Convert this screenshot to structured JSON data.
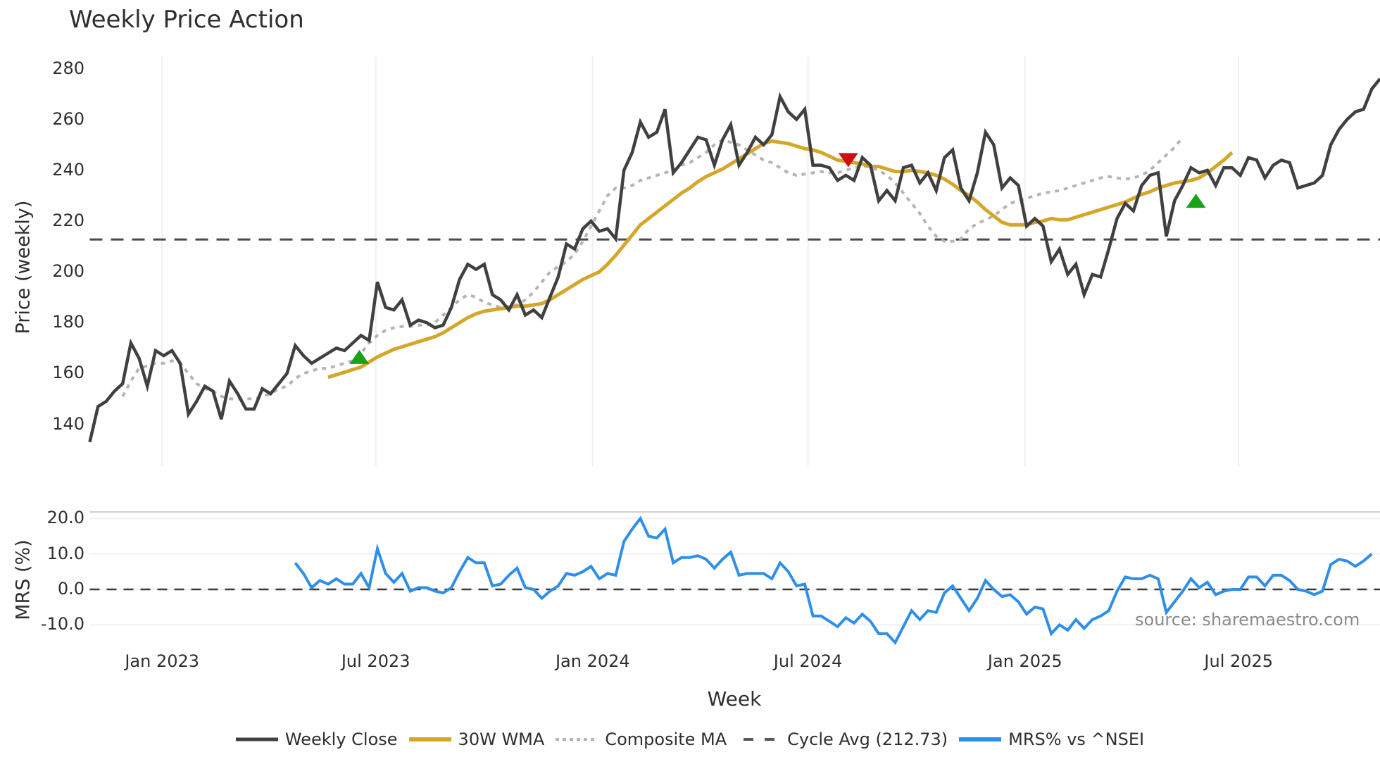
{
  "title": "Weekly Price Action",
  "price_axis": {
    "label": "Price (weekly)",
    "ticks": [
      {
        "v": 280,
        "label": "280"
      },
      {
        "v": 260,
        "label": "260"
      },
      {
        "v": 240,
        "label": "240"
      },
      {
        "v": 220,
        "label": "220"
      },
      {
        "v": 200,
        "label": "200"
      },
      {
        "v": 180,
        "label": "180"
      },
      {
        "v": 160,
        "label": "160"
      },
      {
        "v": 140,
        "label": "140"
      }
    ]
  },
  "mrs_axis": {
    "label": "MRS (%)",
    "ticks": [
      {
        "v": 20,
        "label": "20.0"
      },
      {
        "v": 10,
        "label": "10.0"
      },
      {
        "v": 0,
        "label": "0.0"
      },
      {
        "v": -10,
        "label": "-10.0"
      }
    ]
  },
  "x_axis": {
    "label": "Week",
    "ticks": [
      {
        "i": 8.8,
        "label": "Jan 2023"
      },
      {
        "i": 34.8,
        "label": "Jul 2023"
      },
      {
        "i": 61.2,
        "label": "Jan 2024"
      },
      {
        "i": 87.4,
        "label": "Jul 2024"
      },
      {
        "i": 113.8,
        "label": "Jan 2025"
      },
      {
        "i": 139.8,
        "label": "Jul 2025"
      }
    ]
  },
  "source_note": "source: sharemaestro.com",
  "colors": {
    "close": "#404040",
    "wma": "#d4a62a",
    "composite": "#b5b5b5",
    "cycle": "#4a4a4a",
    "mrs": "#2f8fe8",
    "buy": "#1aa31a",
    "sell": "#cc1111",
    "grid": "#eef0f4"
  },
  "legend": [
    {
      "key": "close",
      "label": "Weekly Close"
    },
    {
      "key": "wma",
      "label": "30W WMA"
    },
    {
      "key": "composite",
      "label": "Composite MA"
    },
    {
      "key": "cycle",
      "label": "Cycle Avg (212.73)"
    },
    {
      "key": "mrs",
      "label": "MRS% vs ^NSEI"
    }
  ],
  "chart_data": {
    "type": "line",
    "title": "Weekly Price Action",
    "xlabel": "Week",
    "ylabel": "Price (weekly)",
    "ylim": [
      128,
      283
    ],
    "x_tick_labels": [
      "Jan 2023",
      "Jul 2023",
      "Jan 2024",
      "Jul 2024",
      "Jan 2025",
      "Jul 2025"
    ],
    "cycle_avg": 212.73,
    "series": [
      {
        "name": "Weekly Close",
        "start_index": 0,
        "values": [
          133,
          147,
          149,
          153,
          156,
          172,
          166,
          155,
          169,
          167,
          169,
          164,
          144,
          149,
          155,
          153,
          142,
          157,
          152,
          146,
          146,
          154,
          152,
          156,
          160,
          171,
          167,
          164,
          166,
          168,
          170,
          169,
          172,
          175,
          173,
          196,
          186,
          185,
          189,
          179,
          181,
          180,
          178,
          179,
          186,
          197,
          203,
          201,
          203,
          191,
          189,
          185,
          191,
          183,
          185,
          182,
          190,
          198,
          211,
          209,
          217,
          220,
          216,
          217,
          213,
          240,
          247,
          259,
          253,
          255,
          264,
          239,
          243,
          248,
          253,
          252,
          242,
          252,
          258,
          242,
          247,
          253,
          250,
          254,
          269,
          263,
          260,
          264,
          242,
          242,
          241,
          236,
          238,
          236,
          245,
          242,
          228,
          232,
          228,
          241,
          242,
          235,
          239,
          232,
          245,
          248,
          233,
          228,
          239,
          255,
          250,
          233,
          237,
          234,
          218,
          221,
          218,
          204,
          209,
          199,
          203,
          191,
          199,
          198,
          209,
          221,
          227,
          224,
          234,
          238,
          239,
          214,
          228,
          234,
          241,
          239,
          240,
          234,
          241,
          241,
          238,
          245,
          244,
          237,
          242,
          244,
          243,
          233,
          234,
          235,
          238,
          250,
          256,
          260,
          263,
          264,
          272,
          276
        ]
      },
      {
        "name": "30W WMA",
        "start_index": 29,
        "values": [
          158.5,
          159.5,
          160.5,
          161.5,
          162.5,
          164.5,
          166.5,
          168,
          169.5,
          170.5,
          171.5,
          172.5,
          173.5,
          174.5,
          176,
          178,
          180,
          182,
          183.5,
          184.5,
          185,
          185.5,
          186,
          186.5,
          186.5,
          187,
          187.5,
          189,
          191,
          193,
          195,
          197,
          198.5,
          200,
          203,
          206.5,
          210.5,
          214.5,
          218.5,
          221,
          223.5,
          226,
          228.5,
          231,
          233,
          235.5,
          237.5,
          239,
          240.5,
          242.5,
          244.5,
          246.5,
          248.5,
          250.5,
          251.5,
          251,
          250.5,
          249.5,
          248.5,
          248,
          247,
          245.5,
          244,
          243.5,
          243,
          242.5,
          241.5,
          241.5,
          240.5,
          239.5,
          239.5,
          240,
          239.5,
          239,
          238,
          236.5,
          234.5,
          232,
          230,
          227.5,
          224.5,
          222,
          219.5,
          218.5,
          218.5,
          218.5,
          219.5,
          220,
          221,
          220.5,
          220.5,
          221.5,
          222.5,
          223.5,
          224.5,
          225.5,
          226.5,
          227.5,
          229,
          230.5,
          231.5,
          233,
          234,
          235,
          235.5,
          236,
          237,
          239,
          241.5,
          244,
          247
        ]
      },
      {
        "name": "Composite MA",
        "start_index": 4,
        "values": [
          151,
          157,
          162,
          163,
          164,
          164,
          165,
          164,
          160,
          156,
          154,
          153,
          151,
          150,
          150,
          150,
          150,
          151,
          152,
          154,
          155,
          158,
          160,
          161,
          162,
          162,
          163,
          164,
          165,
          168,
          172,
          175,
          177,
          178,
          178.5,
          178.5,
          179,
          179,
          180,
          183,
          186,
          189,
          191,
          190,
          188,
          187,
          186,
          186.5,
          187,
          189,
          192,
          196,
          200,
          202,
          204,
          207,
          212,
          218,
          224,
          230,
          233,
          233,
          234,
          236,
          237,
          238,
          239,
          240,
          242,
          243,
          245,
          247,
          250,
          252,
          251,
          250,
          248,
          246,
          244,
          243,
          241,
          239,
          238,
          238.5,
          239,
          239.5,
          239,
          239,
          240,
          241,
          242,
          241,
          240,
          238,
          235,
          231,
          227,
          223,
          218,
          214,
          212,
          212,
          213,
          217,
          219,
          220.5,
          222,
          224.5,
          227,
          228,
          229,
          230,
          231,
          231.5,
          232,
          233,
          234,
          235,
          236,
          237,
          237.5,
          237,
          236.5,
          237,
          238,
          240,
          243,
          246,
          249,
          253
        ]
      },
      {
        "name": "MRS% vs ^NSEI",
        "start_index": 25,
        "values": [
          7.5,
          4.5,
          0.5,
          2.5,
          1.5,
          3,
          1.5,
          1.5,
          4.5,
          0.5,
          11.5,
          4.5,
          2,
          4.5,
          -0.5,
          0.5,
          0.5,
          -0.5,
          -1,
          0.5,
          5,
          9,
          7.5,
          7.5,
          1,
          1.5,
          4,
          6,
          0.5,
          0,
          -2.5,
          -0.5,
          1,
          4.5,
          4,
          5,
          6.5,
          3,
          4.5,
          4,
          13.5,
          17,
          20,
          15,
          14.5,
          17,
          7.5,
          9,
          9,
          9.5,
          8.5,
          6,
          8.5,
          10.5,
          4,
          4.5,
          4.5,
          4.5,
          3,
          7.5,
          5,
          1,
          1.5,
          -7.5,
          -7.5,
          -9,
          -10.5,
          -8,
          -9.5,
          -7,
          -9,
          -12.5,
          -12.5,
          -15,
          -10.5,
          -6,
          -8.5,
          -6,
          -6.5,
          -1,
          1,
          -2.5,
          -6,
          -2.5,
          2.5,
          0,
          -2,
          -1.5,
          -3.5,
          -7,
          -5,
          -5.5,
          -12.5,
          -10,
          -11.5,
          -8.5,
          -11,
          -8.5,
          -7.5,
          -6,
          -0.5,
          3.5,
          3,
          3,
          4,
          3,
          -6.5,
          -3.5,
          -0.5,
          3,
          0.5,
          2,
          -1.5,
          -0.5,
          0,
          0,
          3.5,
          3.5,
          1,
          4,
          4,
          2.5,
          0,
          -0.5,
          -1.5,
          -0.5,
          7,
          8.5,
          8,
          6.5,
          8,
          10
        ]
      }
    ],
    "markers": [
      {
        "type": "buy",
        "index": 32.8,
        "value": 166.5
      },
      {
        "type": "sell",
        "index": 92.3,
        "value": 244
      },
      {
        "type": "buy",
        "index": 134.6,
        "value": 228
      }
    ],
    "mrs_ylim": [
      -16,
      22
    ],
    "mrs_baseline": 0
  }
}
